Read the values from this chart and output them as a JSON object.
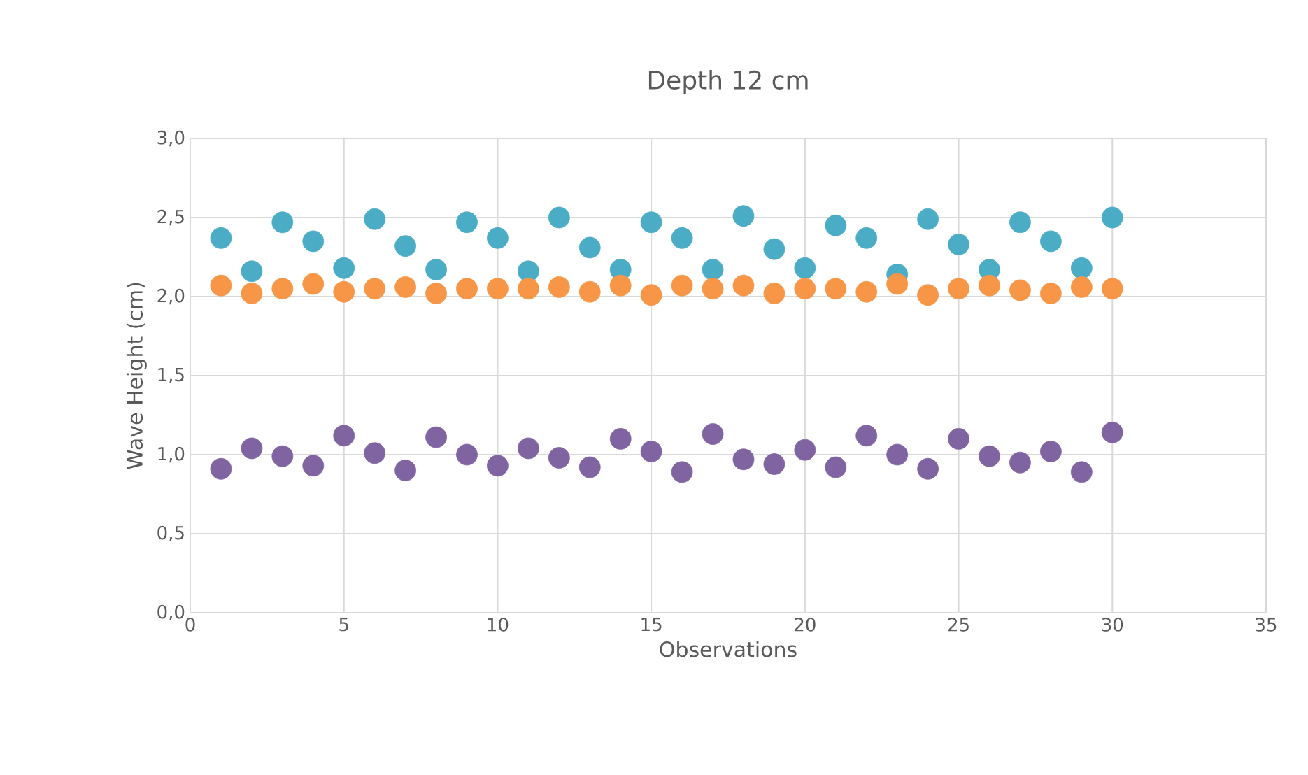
{
  "chart_data": {
    "type": "scatter",
    "title": "Depth 12 cm",
    "xlabel": "Observations",
    "ylabel": "Wave Height  (cm)",
    "x": [
      1,
      2,
      3,
      4,
      5,
      6,
      7,
      8,
      9,
      10,
      11,
      12,
      13,
      14,
      15,
      16,
      17,
      18,
      19,
      20,
      21,
      22,
      23,
      24,
      25,
      26,
      27,
      28,
      29,
      30
    ],
    "series": [
      {
        "color": "#4bacc6",
        "values": [
          2.37,
          2.16,
          2.47,
          2.35,
          2.18,
          2.49,
          2.32,
          2.17,
          2.47,
          2.37,
          2.16,
          2.5,
          2.31,
          2.17,
          2.47,
          2.37,
          2.17,
          2.51,
          2.3,
          2.18,
          2.45,
          2.37,
          2.14,
          2.49,
          2.33,
          2.17,
          2.47,
          2.35,
          2.18,
          2.5
        ]
      },
      {
        "color": "#f79646",
        "values": [
          2.07,
          2.02,
          2.05,
          2.08,
          2.03,
          2.05,
          2.06,
          2.02,
          2.05,
          2.05,
          2.05,
          2.06,
          2.03,
          2.07,
          2.01,
          2.07,
          2.05,
          2.07,
          2.02,
          2.05,
          2.05,
          2.03,
          2.08,
          2.01,
          2.05,
          2.07,
          2.04,
          2.02,
          2.06,
          2.05
        ]
      },
      {
        "color": "#8064a2",
        "values": [
          0.91,
          1.04,
          0.99,
          0.93,
          1.12,
          1.01,
          0.9,
          1.11,
          1.0,
          0.93,
          1.04,
          0.98,
          0.92,
          1.1,
          1.02,
          0.89,
          1.13,
          0.97,
          0.94,
          1.03,
          0.92,
          1.12,
          1.0,
          0.91,
          1.1,
          0.99,
          0.95,
          1.02,
          0.89,
          1.14
        ]
      }
    ],
    "xlim": [
      0,
      35
    ],
    "xticks": [
      0,
      5,
      10,
      15,
      20,
      25,
      30,
      35
    ],
    "ylim": [
      0,
      3
    ],
    "yticks": [
      {
        "value": 0,
        "label": "0,0"
      },
      {
        "value": 0.5,
        "label": "0,5"
      },
      {
        "value": 1,
        "label": "1,0"
      },
      {
        "value": 1.5,
        "label": "1,5"
      },
      {
        "value": 2,
        "label": "2,0"
      },
      {
        "value": 2.5,
        "label": "2,5"
      },
      {
        "value": 3,
        "label": "3,0"
      }
    ],
    "grid": true
  }
}
